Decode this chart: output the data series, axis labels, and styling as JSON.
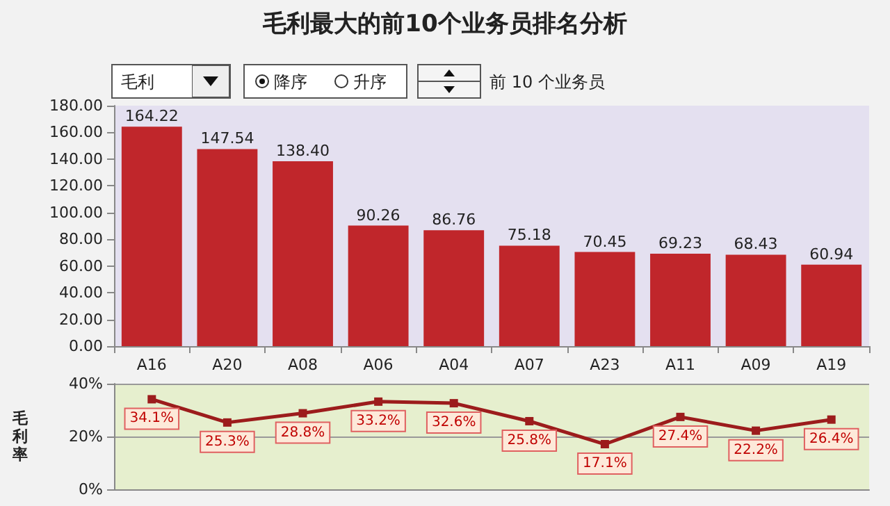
{
  "chart_data": [
    {
      "type": "bar",
      "title": "毛利最大的前10个业务员排名分析",
      "annotations": [
        "毛利",
        "降序",
        "升序",
        "前 10 个业务员"
      ],
      "categories": [
        "A16",
        "A20",
        "A08",
        "A06",
        "A04",
        "A07",
        "A23",
        "A11",
        "A09",
        "A19"
      ],
      "values": [
        164.22,
        147.54,
        138.4,
        90.26,
        86.76,
        75.18,
        70.45,
        69.23,
        68.43,
        60.94
      ],
      "value_labels": [
        "164.22",
        "147.54",
        "138.40",
        "90.26",
        "86.76",
        "75.18",
        "70.45",
        "69.23",
        "68.43",
        "60.94"
      ],
      "color": "#c0262b",
      "ylim": [
        0,
        180
      ],
      "yticks": [
        {
          "value": 0,
          "label": "0.00"
        },
        {
          "value": 20,
          "label": "20.00"
        },
        {
          "value": 40,
          "label": "40.00"
        },
        {
          "value": 60,
          "label": "60.00"
        },
        {
          "value": 80,
          "label": "80.00"
        },
        {
          "value": 100,
          "label": "100.00"
        },
        {
          "value": 120,
          "label": "120.00"
        },
        {
          "value": 140,
          "label": "140.00"
        },
        {
          "value": 160,
          "label": "160.00"
        },
        {
          "value": 180,
          "label": "180.00"
        }
      ]
    },
    {
      "type": "line",
      "ylabel": "毛利率",
      "tick_labels": "y",
      "marker": "square",
      "grid": "y",
      "categories": [
        null,
        null,
        null,
        null,
        null,
        null,
        null,
        null,
        null,
        null
      ],
      "values": [
        34.1,
        25.3,
        28.8,
        33.2,
        32.6,
        25.8,
        17.1,
        27.4,
        22.2,
        26.4
      ],
      "value_labels": [
        "34.1%",
        "25.3%",
        "28.8%",
        "33.2%",
        "32.6%",
        "25.8%",
        "17.1%",
        "27.4%",
        "22.2%",
        "26.4%"
      ],
      "color": "#9c1c1c",
      "ylim": [
        0,
        40
      ],
      "yticks": [
        {
          "value": 0,
          "label": "0%"
        },
        {
          "value": 20,
          "label": "20%"
        },
        {
          "value": 40,
          "label": "40%"
        }
      ]
    }
  ]
}
